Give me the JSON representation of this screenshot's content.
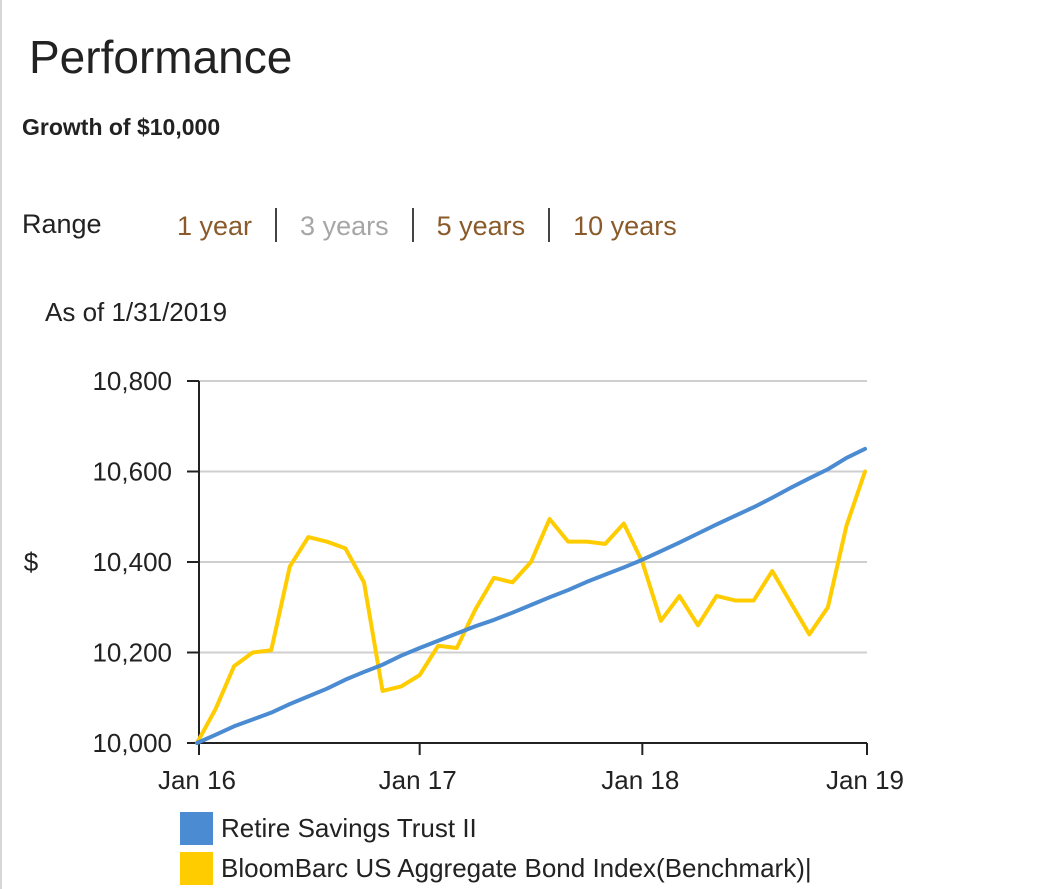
{
  "header": {
    "title": "Performance",
    "subtitle": "Growth of $10,000"
  },
  "range": {
    "label": "Range",
    "options": [
      {
        "label": "1 year",
        "active": false
      },
      {
        "label": "3 years",
        "active": true
      },
      {
        "label": "5 years",
        "active": false
      },
      {
        "label": "10 years",
        "active": false
      }
    ]
  },
  "as_of": "As of 1/31/2019",
  "colors": {
    "fund": "#4a8bd2",
    "benchmark": "#ffcc00",
    "link": "#8a5a2b",
    "link_active": "#a6a6a6"
  },
  "chart_data": {
    "type": "line",
    "title": "",
    "xlabel": "",
    "ylabel": "$",
    "ylim": [
      10000,
      10800
    ],
    "yticks": [
      10000,
      10200,
      10400,
      10600,
      10800
    ],
    "ytick_labels": [
      "10,000",
      "10,200",
      "10,400",
      "10,600",
      "10,800"
    ],
    "xtick_labels": [
      "Jan 16",
      "Jan 17",
      "Jan 18",
      "Jan 19"
    ],
    "xtick_positions": [
      0,
      12,
      24,
      36
    ],
    "grid": true,
    "legend_position": "bottom",
    "x": [
      0,
      1,
      2,
      3,
      4,
      5,
      6,
      7,
      8,
      9,
      10,
      11,
      12,
      13,
      14,
      15,
      16,
      17,
      18,
      19,
      20,
      21,
      22,
      23,
      24,
      25,
      26,
      27,
      28,
      29,
      30,
      31,
      32,
      33,
      34,
      35,
      36
    ],
    "series": [
      {
        "name": "Retire Savings Trust II",
        "color": "#4a8bd2",
        "values": [
          10000,
          10018,
          10037,
          10052,
          10067,
          10086,
          10103,
          10120,
          10140,
          10157,
          10173,
          10193,
          10210,
          10226,
          10242,
          10258,
          10272,
          10288,
          10305,
          10322,
          10338,
          10356,
          10372,
          10388,
          10405,
          10424,
          10443,
          10463,
          10483,
          10502,
          10521,
          10542,
          10564,
          10585,
          10605,
          10630,
          10650
        ]
      },
      {
        "name": "BloomBarc US Aggregate Bond Index(Benchmark)|",
        "color": "#ffcc00",
        "values": [
          10000,
          10075,
          10170,
          10200,
          10205,
          10390,
          10455,
          10445,
          10430,
          10355,
          10115,
          10125,
          10150,
          10215,
          10210,
          10295,
          10365,
          10355,
          10400,
          10495,
          10445,
          10445,
          10440,
          10485,
          10400,
          10270,
          10325,
          10260,
          10325,
          10315,
          10315,
          10380,
          10310,
          10240,
          10300,
          10480,
          10600
        ]
      }
    ]
  }
}
